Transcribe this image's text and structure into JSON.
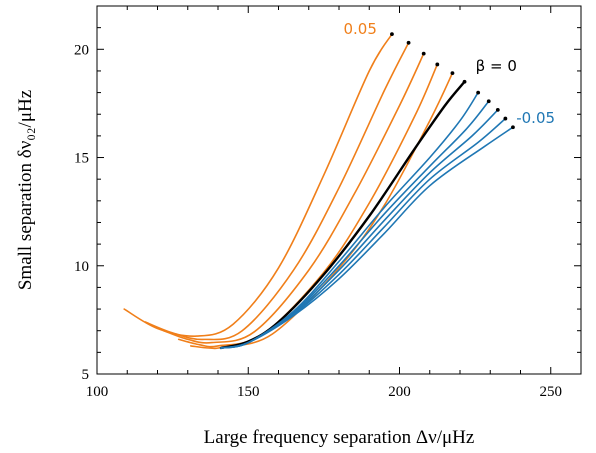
{
  "chart_data": {
    "type": "line",
    "title": "",
    "xlabel": "Large frequency separation Δν/μHz",
    "ylabel": "Small separation δν₀₂/μHz",
    "xlim": [
      100,
      260
    ],
    "ylim": [
      5,
      22
    ],
    "xticks": [
      100,
      150,
      200,
      250
    ],
    "yticks": [
      5,
      10,
      15,
      20
    ],
    "grid": false,
    "legend": "none",
    "colors": {
      "positive": "#f07f1a",
      "zero": "#000000",
      "negative": "#1f77b4"
    },
    "annotations": [
      {
        "text": "0.05",
        "color": "#f07f1a",
        "x": 187,
        "y": 20.7
      },
      {
        "text": "β = 0",
        "color": "#000000",
        "x": 232,
        "y": 19.0
      },
      {
        "text": "-0.05",
        "color": "#1f77b4",
        "x": 245,
        "y": 16.6
      }
    ],
    "series": [
      {
        "color": "#f07f1a",
        "x": [
          109,
          120,
          133,
          145,
          160,
          175,
          190,
          197.5
        ],
        "y": [
          8.0,
          7.1,
          6.75,
          7.3,
          9.9,
          14.2,
          19.0,
          20.7
        ]
      },
      {
        "color": "#f07f1a",
        "x": [
          116,
          125,
          135,
          148,
          165,
          180,
          195,
          203
        ],
        "y": [
          7.4,
          6.9,
          6.6,
          7.0,
          9.8,
          13.6,
          18.1,
          20.3
        ]
      },
      {
        "color": "#f07f1a",
        "x": [
          122,
          130,
          138,
          152,
          170,
          185,
          200,
          208
        ],
        "y": [
          7.0,
          6.6,
          6.45,
          6.95,
          9.8,
          13.3,
          17.4,
          19.8
        ]
      },
      {
        "color": "#f07f1a",
        "x": [
          127,
          134,
          140,
          155,
          175,
          190,
          205,
          212.5
        ],
        "y": [
          6.6,
          6.35,
          6.3,
          6.85,
          9.7,
          12.9,
          16.9,
          19.3
        ]
      },
      {
        "color": "#f07f1a",
        "x": [
          131,
          137,
          142,
          158,
          180,
          195,
          210,
          217.5
        ],
        "y": [
          6.3,
          6.2,
          6.25,
          6.85,
          9.9,
          12.8,
          16.7,
          18.9
        ]
      },
      {
        "color": "#000000",
        "x": [
          141,
          150,
          160,
          175,
          190,
          205,
          215,
          221.5
        ],
        "y": [
          6.2,
          6.5,
          7.4,
          9.6,
          12.3,
          15.4,
          17.4,
          18.5
        ]
      },
      {
        "color": "#1f77b4",
        "x": [
          141,
          150,
          165,
          180,
          195,
          210,
          220,
          226
        ],
        "y": [
          6.2,
          6.45,
          7.9,
          10.2,
          12.7,
          15.0,
          16.7,
          18.0
        ]
      },
      {
        "color": "#1f77b4",
        "x": [
          141,
          150,
          165,
          180,
          195,
          210,
          222,
          229.5
        ],
        "y": [
          6.2,
          6.45,
          7.85,
          10.0,
          12.4,
          14.6,
          16.3,
          17.6
        ]
      },
      {
        "color": "#1f77b4",
        "x": [
          141,
          150,
          165,
          180,
          195,
          210,
          224,
          232.5
        ],
        "y": [
          6.2,
          6.45,
          7.8,
          9.8,
          12.1,
          14.3,
          16.0,
          17.2
        ]
      },
      {
        "color": "#1f77b4",
        "x": [
          141,
          150,
          165,
          180,
          195,
          210,
          226,
          235
        ],
        "y": [
          6.2,
          6.45,
          7.75,
          9.6,
          11.8,
          14.0,
          15.7,
          16.8
        ]
      },
      {
        "color": "#1f77b4",
        "x": [
          141,
          150,
          165,
          180,
          195,
          210,
          228,
          237.5
        ],
        "y": [
          6.2,
          6.45,
          7.7,
          9.4,
          11.5,
          13.7,
          15.5,
          16.4
        ]
      }
    ]
  }
}
